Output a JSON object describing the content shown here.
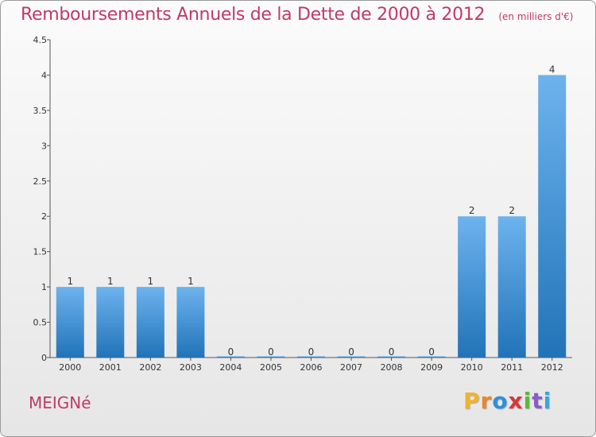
{
  "title": "Remboursements Annuels de la Dette de 2000 à 2012",
  "unit": "(en milliers d'€)",
  "commune": "MEIGNé",
  "logo": {
    "letters": [
      "P",
      "r",
      "o",
      "x",
      "i",
      "t",
      "i"
    ],
    "colors": [
      "#f0b42a",
      "#e8882a",
      "#2f8fd8",
      "#d8363c",
      "#5ab83a",
      "#8a5cc8",
      "#3aa5d8"
    ]
  },
  "colors": {
    "bar_light": "#6db3ee",
    "bar_dark": "#2173b8",
    "accent": "#c0396a"
  },
  "chart_data": {
    "type": "bar",
    "title": "Remboursements Annuels de la Dette de 2000 à 2012",
    "categories": [
      "2000",
      "2001",
      "2002",
      "2003",
      "2004",
      "2005",
      "2006",
      "2007",
      "2008",
      "2009",
      "2010",
      "2011",
      "2012"
    ],
    "values": [
      1,
      1,
      1,
      1,
      0,
      0,
      0,
      0,
      0,
      0,
      2,
      2,
      4
    ],
    "value_labels": [
      "1",
      "1",
      "1",
      "1",
      "0",
      "0",
      "0",
      "0",
      "0",
      "0",
      "2",
      "2",
      "4"
    ],
    "ylim": [
      0,
      4.5
    ],
    "yticks": [
      0,
      0.5,
      1,
      1.5,
      2,
      2.5,
      3,
      3.5,
      4,
      4.5
    ],
    "ytick_labels": [
      "0",
      "0.5",
      "1",
      "1.5",
      "2",
      "2.5",
      "3",
      "3.5",
      "4",
      "4.5"
    ],
    "grid": false
  }
}
